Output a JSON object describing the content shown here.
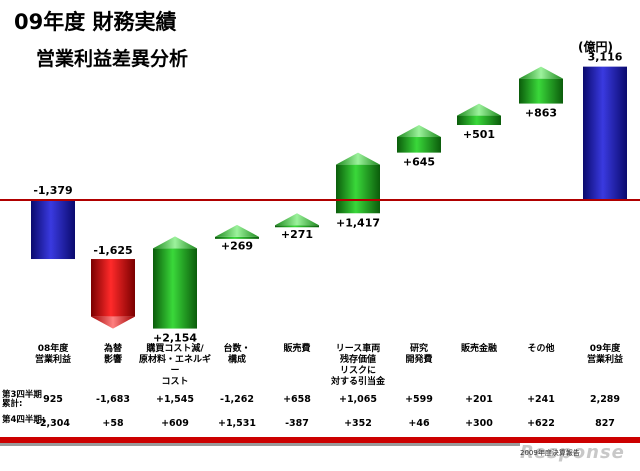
{
  "header": {
    "title": "09年度 財務実績",
    "subtitle": "営業利益差異分析",
    "unit": "(億円)"
  },
  "chart_data": {
    "type": "bar",
    "subtype": "waterfall",
    "categories": [
      "08年度\n営業利益",
      "為替\n影響",
      "購買コスト減/\n原材料・エネルギー\nコスト",
      "台数・\n構成",
      "販売費",
      "リース車両\n残存価値\nリスクに\n対する引当金",
      "研究\n開発費",
      "販売金融",
      "その他",
      "09年度\n営業利益"
    ],
    "values": [
      -1379,
      -1625,
      2154,
      269,
      271,
      1417,
      645,
      501,
      863,
      3116
    ],
    "value_labels": [
      "-1,379",
      "-1,625",
      "+2,154",
      "+269",
      "+271",
      "+1,417",
      "+645",
      "+501",
      "+863",
      "3,116"
    ],
    "bar_kinds": [
      "total",
      "delta",
      "delta",
      "delta",
      "delta",
      "delta",
      "delta",
      "delta",
      "delta",
      "total"
    ],
    "colors": {
      "total": "#1a1aa8",
      "negative": "#cc0000",
      "positive": "#119911",
      "baseline": "#b00000"
    },
    "ylim": [
      -3100,
      3400
    ],
    "baseline": 0
  },
  "table": {
    "rows": [
      {
        "label": "第3四半期\n累計:",
        "values": [
          "925",
          "-1,683",
          "+1,545",
          "-1,262",
          "+658",
          "+1,065",
          "+599",
          "+201",
          "+241",
          "2,289"
        ]
      },
      {
        "label": "第4四半期:",
        "values": [
          "-2,304",
          "+58",
          "+609",
          "+1,531",
          "-387",
          "+352",
          "+46",
          "+300",
          "+622",
          "827"
        ]
      }
    ]
  },
  "footer": {
    "source": "2009年度決算報告",
    "watermark": "Response"
  }
}
